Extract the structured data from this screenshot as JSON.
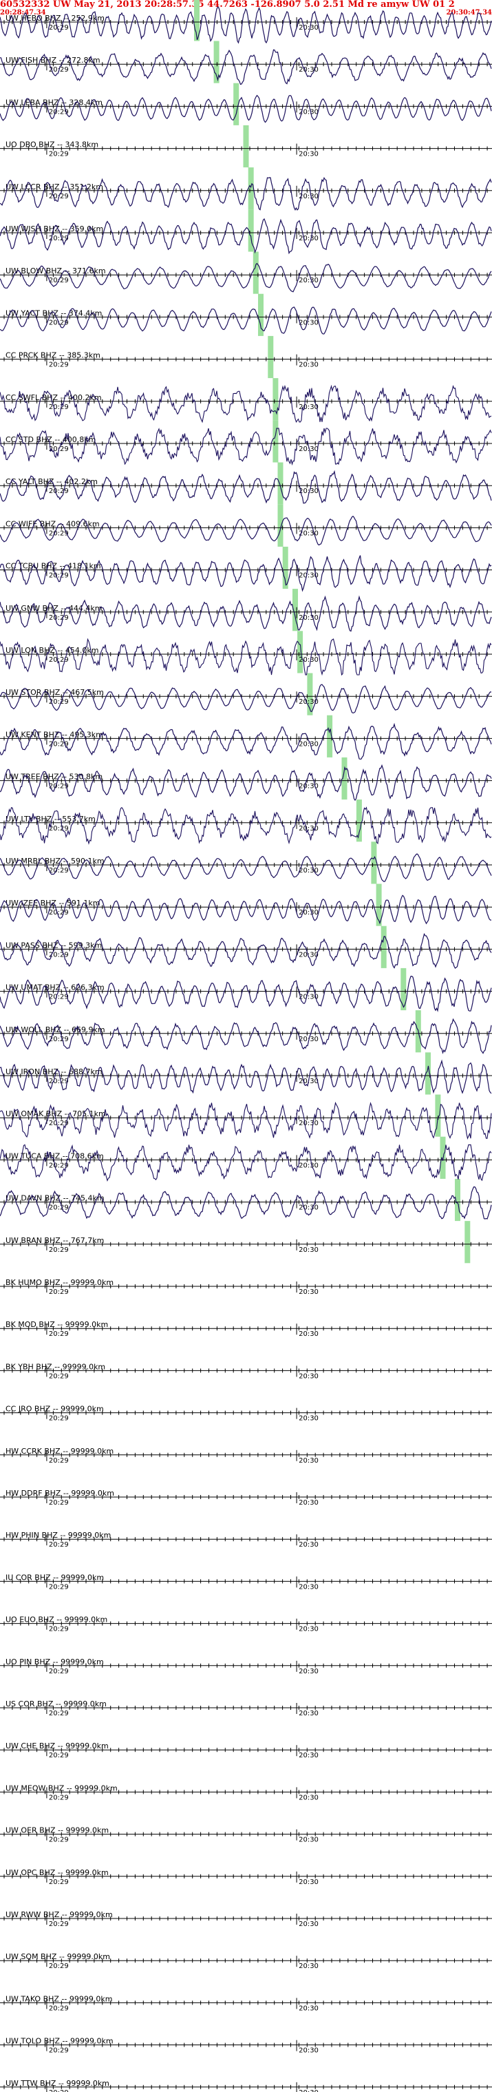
{
  "header": {
    "title": "60532332 UW May 21, 2013 20:28:57.35   44.7263 -126.8907  5.0 2.51 Md re amyw UW 01   2",
    "start_time": "20:28:47.34",
    "end_time": "20:30:47.34"
  },
  "colors": {
    "trace": "#1a0f5c",
    "pick": "#9ee09e",
    "title": "#e00000",
    "axis": "#000000"
  },
  "chart_data": {
    "type": "line",
    "tick_labels": [
      "20:29",
      "20:30"
    ],
    "channels": [
      {
        "label": "UW HEBO BHZ -- 252.9km",
        "trace": "medium",
        "pick": 0.4
      },
      {
        "label": "UW FISH BHZ -- 272.8km",
        "trace": "medium",
        "pick": 0.44
      },
      {
        "label": "UW LEBA BHZ -- 328.4km",
        "trace": "smooth",
        "pick": 0.48
      },
      {
        "label": "UO DBO BHZ -- 343.8km",
        "trace": "none",
        "pick": 0.5
      },
      {
        "label": "UW LCCR BHZ -- 351.2km",
        "trace": "medium",
        "pick": 0.51
      },
      {
        "label": "UW WISH BHZ -- 359.0km",
        "trace": "medium",
        "pick": 0.51
      },
      {
        "label": "UW BLOW BHZ -- 371.6km",
        "trace": "smooth",
        "pick": 0.52
      },
      {
        "label": "UW YACT BHZ -- 374.4km",
        "trace": "smooth",
        "pick": 0.53
      },
      {
        "label": "CC PRCK BHZ -- 385.3km",
        "trace": "none",
        "pick": 0.55
      },
      {
        "label": "CC SWFL BHZ -- 400.2km",
        "trace": "noisy",
        "pick": 0.56
      },
      {
        "label": "CC STD BHZ -- 400.8km",
        "trace": "noisy",
        "pick": 0.56
      },
      {
        "label": "CC YALT BHZ -- 402.2km",
        "trace": "medium",
        "pick": 0.57
      },
      {
        "label": "CC WIFE BHZ -- 409.6km",
        "trace": "smooth",
        "pick": 0.57
      },
      {
        "label": "CC TCBU BHZ -- 418.1km",
        "trace": "medium",
        "pick": 0.58
      },
      {
        "label": "UW GNW BHZ -- 444.4km",
        "trace": "medium",
        "pick": 0.6
      },
      {
        "label": "UW LON BHZ -- 454.0km",
        "trace": "noisy",
        "pick": 0.61
      },
      {
        "label": "UW STOR BHZ -- 467.5km",
        "trace": "smooth",
        "pick": 0.63
      },
      {
        "label": "UW KENT BHZ -- 495.3km",
        "trace": "medium",
        "pick": 0.67
      },
      {
        "label": "UW TREE BHZ -- 530.8km",
        "trace": "medium",
        "pick": 0.7
      },
      {
        "label": "UW LTY BHZ -- 553.7km",
        "trace": "noisy",
        "pick": 0.73
      },
      {
        "label": "UW MRBL BHZ -- 590.1km",
        "trace": "smooth",
        "pick": 0.76
      },
      {
        "label": "UW IZEE BHZ -- 591.1km",
        "trace": "smooth",
        "pick": 0.77
      },
      {
        "label": "UW PASS BHZ -- 599.3km",
        "trace": "medium",
        "pick": 0.78
      },
      {
        "label": "UW UMAT BHZ -- 626.3km",
        "trace": "medium",
        "pick": 0.82
      },
      {
        "label": "UW WOLL BHZ -- 669.9km",
        "trace": "medium",
        "pick": 0.85
      },
      {
        "label": "UW IRON BHZ -- 688.7km",
        "trace": "medium",
        "pick": 0.87
      },
      {
        "label": "UW OMAK BHZ -- 705.1km",
        "trace": "noisy",
        "pick": 0.89
      },
      {
        "label": "UW TUCA BHZ -- 708.6km",
        "trace": "noisy",
        "pick": 0.9
      },
      {
        "label": "UW DAVN BHZ -- 745.4km",
        "trace": "medium",
        "pick": 0.93
      },
      {
        "label": "UW BRAN BHZ -- 767.7km",
        "trace": "none",
        "pick": 0.95
      },
      {
        "label": "BK HUMO BHZ -- 99999.0km",
        "trace": "none",
        "pick": null
      },
      {
        "label": "BK MOD BHZ -- 99999.0km",
        "trace": "none",
        "pick": null
      },
      {
        "label": "BK YBH BHZ -- 99999.0km",
        "trace": "none",
        "pick": null
      },
      {
        "label": "CC JRO BHZ -- 99999.0km",
        "trace": "none",
        "pick": null
      },
      {
        "label": "HW CCRK BHZ -- 99999.0km",
        "trace": "none",
        "pick": null
      },
      {
        "label": "HW DDRF BHZ -- 99999.0km",
        "trace": "none",
        "pick": null
      },
      {
        "label": "HW PHIN BHZ -- 99999.0km",
        "trace": "none",
        "pick": null
      },
      {
        "label": "IU COR BHZ -- 99999.0km",
        "trace": "none",
        "pick": null
      },
      {
        "label": "UO EUO BHZ -- 99999.0km",
        "trace": "none",
        "pick": null
      },
      {
        "label": "UO PIN BHZ -- 99999.0km",
        "trace": "none",
        "pick": null
      },
      {
        "label": "US COR BHZ -- 99999.0km",
        "trace": "none",
        "pick": null
      },
      {
        "label": "UW CHE BHZ -- 99999.0km",
        "trace": "none",
        "pick": null
      },
      {
        "label": "UW MEOW BHZ -- 99999.0km",
        "trace": "none",
        "pick": null
      },
      {
        "label": "UW OER BHZ -- 99999.0km",
        "trace": "none",
        "pick": null
      },
      {
        "label": "UW OPC BHZ -- 99999.0km",
        "trace": "none",
        "pick": null
      },
      {
        "label": "UW RWW BHZ -- 99999.0km",
        "trace": "none",
        "pick": null
      },
      {
        "label": "UW SQM BHZ -- 99999.0km",
        "trace": "none",
        "pick": null
      },
      {
        "label": "UW TAKO BHZ -- 99999.0km",
        "trace": "none",
        "pick": null
      },
      {
        "label": "UW TOLO BHZ -- 99999.0km",
        "trace": "none",
        "pick": null
      },
      {
        "label": "UW TTW BHZ -- 99999.0km",
        "trace": "none",
        "pick": null
      }
    ]
  }
}
